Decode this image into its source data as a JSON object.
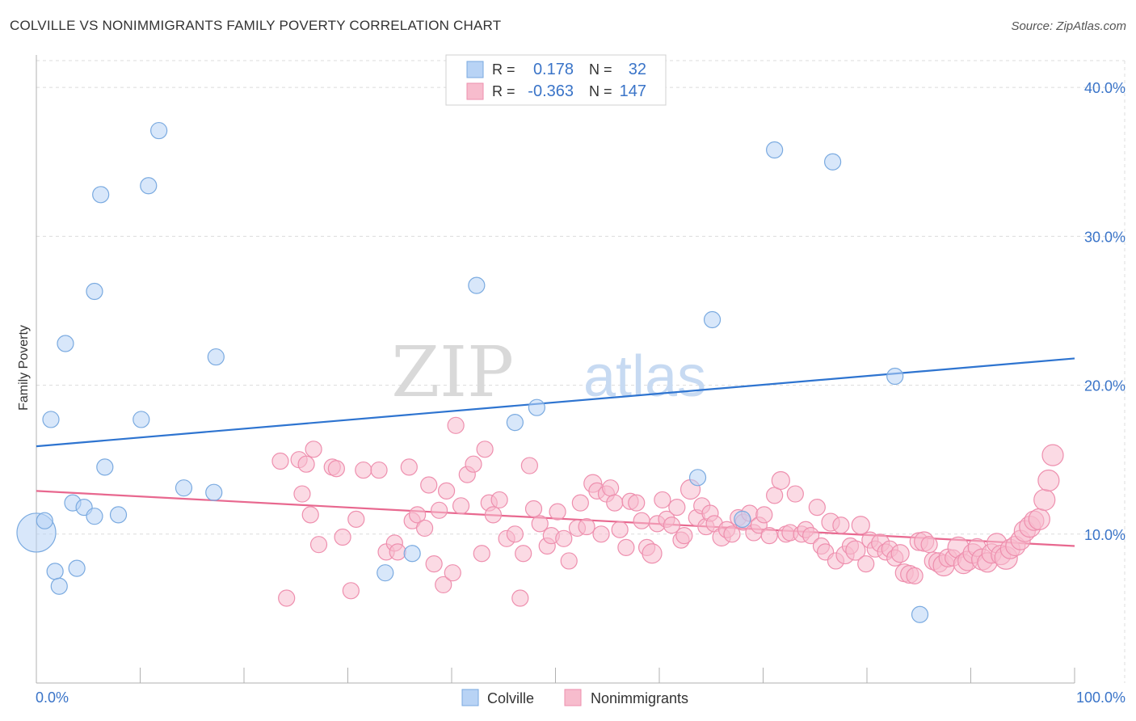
{
  "title": "COLVILLE VS NONIMMIGRANTS FAMILY POVERTY CORRELATION CHART",
  "source": "Source: ZipAtlas.com",
  "watermark": {
    "zip": "ZIP",
    "atlas": "atlas"
  },
  "colors": {
    "colville_fill": "#b8d3f5",
    "colville_stroke": "#7aaae0",
    "colville_line": "#2e74d0",
    "nonimm_fill": "#f7bccd",
    "nonimm_stroke": "#ee8fae",
    "nonimm_line": "#e8688f",
    "tick_label": "#3a74c8",
    "grid": "#dcdcdc"
  },
  "legend_box": {
    "rows": [
      {
        "r_label": "R =",
        "r_value": "0.178",
        "n_label": "N =",
        "n_value": "32"
      },
      {
        "r_label": "R =",
        "r_value": "-0.363",
        "n_label": "N =",
        "n_value": "147"
      }
    ]
  },
  "bottom_legend": {
    "series1": "Colville",
    "series2": "Nonimmigrants"
  },
  "chart_data": {
    "type": "scatter",
    "ylabel": "Family Poverty",
    "xlabel": "",
    "x_tick_labels": [
      "0.0%",
      "100.0%"
    ],
    "y_tick_labels": [
      "10.0%",
      "20.0%",
      "30.0%",
      "40.0%"
    ],
    "y_ticks": [
      10,
      20,
      30,
      40
    ],
    "xlim": [
      0,
      100
    ],
    "ylim": [
      0,
      41.8
    ],
    "grid": true,
    "legend_position": "top-center",
    "series": [
      {
        "name": "Colville",
        "r": 0.178,
        "n": 32,
        "trend": {
          "x": [
            0,
            100
          ],
          "y": [
            15.9,
            21.8
          ]
        },
        "points": [
          [
            0,
            10.1,
            24
          ],
          [
            0.8,
            10.9,
            10
          ],
          [
            1.4,
            17.7,
            10
          ],
          [
            1.8,
            7.5,
            10
          ],
          [
            2.2,
            6.5,
            10
          ],
          [
            2.8,
            22.8,
            10
          ],
          [
            3.5,
            12.1,
            10
          ],
          [
            3.9,
            7.7,
            10
          ],
          [
            4.6,
            11.8,
            10
          ],
          [
            5.6,
            11.2,
            10
          ],
          [
            5.6,
            26.3,
            10
          ],
          [
            6.2,
            32.8,
            10
          ],
          [
            6.6,
            14.5,
            10
          ],
          [
            7.9,
            11.3,
            10
          ],
          [
            10.1,
            17.7,
            10
          ],
          [
            10.8,
            33.4,
            10
          ],
          [
            11.8,
            37.1,
            10
          ],
          [
            14.2,
            13.1,
            10
          ],
          [
            17.1,
            12.8,
            10
          ],
          [
            17.3,
            21.9,
            10
          ],
          [
            33.6,
            7.4,
            10
          ],
          [
            36.2,
            8.7,
            10
          ],
          [
            42.4,
            26.7,
            10
          ],
          [
            46.1,
            17.5,
            10
          ],
          [
            48.2,
            18.5,
            10
          ],
          [
            63.7,
            13.8,
            10
          ],
          [
            65.1,
            24.4,
            10
          ],
          [
            68.0,
            11.0,
            10
          ],
          [
            71.1,
            35.8,
            10
          ],
          [
            76.7,
            35.0,
            10
          ],
          [
            82.7,
            20.6,
            10
          ],
          [
            85.1,
            4.6,
            10
          ]
        ]
      },
      {
        "name": "Nonimmigrants",
        "r": -0.363,
        "n": 147,
        "trend": {
          "x": [
            0,
            100
          ],
          "y": [
            12.9,
            9.2
          ]
        },
        "points": [
          [
            23.5,
            14.9,
            10
          ],
          [
            24.1,
            5.7,
            10
          ],
          [
            25.3,
            15.0,
            10
          ],
          [
            25.6,
            12.7,
            10
          ],
          [
            26.0,
            14.7,
            10
          ],
          [
            26.4,
            11.3,
            10
          ],
          [
            26.7,
            15.7,
            10
          ],
          [
            27.2,
            9.3,
            10
          ],
          [
            28.5,
            14.5,
            10
          ],
          [
            28.9,
            14.4,
            10
          ],
          [
            29.5,
            9.8,
            10
          ],
          [
            30.3,
            6.2,
            10
          ],
          [
            30.8,
            11.0,
            10
          ],
          [
            31.5,
            14.3,
            10
          ],
          [
            33.0,
            14.3,
            10
          ],
          [
            33.7,
            8.8,
            10
          ],
          [
            34.5,
            9.4,
            10
          ],
          [
            34.8,
            8.8,
            10
          ],
          [
            35.9,
            14.5,
            10
          ],
          [
            36.2,
            10.9,
            10
          ],
          [
            36.7,
            11.3,
            10
          ],
          [
            37.4,
            10.4,
            10
          ],
          [
            37.8,
            13.3,
            10
          ],
          [
            38.3,
            8.0,
            10
          ],
          [
            38.8,
            11.6,
            10
          ],
          [
            39.2,
            6.6,
            10
          ],
          [
            39.5,
            12.9,
            10
          ],
          [
            40.1,
            7.4,
            10
          ],
          [
            40.4,
            17.3,
            10
          ],
          [
            40.9,
            11.9,
            10
          ],
          [
            41.5,
            14.0,
            10
          ],
          [
            42.1,
            14.7,
            10
          ],
          [
            42.9,
            8.7,
            10
          ],
          [
            43.2,
            15.7,
            10
          ],
          [
            43.6,
            12.1,
            10
          ],
          [
            44.0,
            11.3,
            10
          ],
          [
            44.6,
            12.3,
            10
          ],
          [
            45.3,
            9.7,
            10
          ],
          [
            46.1,
            10.0,
            10
          ],
          [
            46.6,
            5.7,
            10
          ],
          [
            46.9,
            8.7,
            10
          ],
          [
            47.5,
            14.6,
            10
          ],
          [
            47.9,
            11.7,
            10
          ],
          [
            48.5,
            10.7,
            10
          ],
          [
            49.2,
            9.2,
            10
          ],
          [
            49.6,
            9.9,
            10
          ],
          [
            50.2,
            11.5,
            10
          ],
          [
            50.8,
            9.7,
            10
          ],
          [
            51.3,
            8.2,
            10
          ],
          [
            52.1,
            10.4,
            10
          ],
          [
            52.4,
            12.1,
            10
          ],
          [
            53.0,
            10.5,
            10
          ],
          [
            53.6,
            13.4,
            11
          ],
          [
            54.0,
            12.9,
            10
          ],
          [
            54.4,
            10.0,
            10
          ],
          [
            54.9,
            12.7,
            10
          ],
          [
            55.3,
            13.1,
            10
          ],
          [
            55.7,
            12.1,
            10
          ],
          [
            56.2,
            10.3,
            10
          ],
          [
            56.8,
            9.1,
            10
          ],
          [
            57.2,
            12.2,
            10
          ],
          [
            57.8,
            12.1,
            10
          ],
          [
            58.3,
            10.9,
            10
          ],
          [
            58.8,
            9.1,
            10
          ],
          [
            59.3,
            8.7,
            12
          ],
          [
            59.8,
            10.7,
            10
          ],
          [
            60.3,
            12.3,
            10
          ],
          [
            60.7,
            11.0,
            10
          ],
          [
            61.2,
            10.6,
            10
          ],
          [
            61.7,
            11.8,
            10
          ],
          [
            62.1,
            9.6,
            10
          ],
          [
            62.4,
            9.9,
            10
          ],
          [
            63.0,
            13.0,
            12
          ],
          [
            63.6,
            11.1,
            10
          ],
          [
            64.1,
            11.9,
            10
          ],
          [
            64.5,
            10.5,
            10
          ],
          [
            64.9,
            11.4,
            10
          ],
          [
            65.3,
            10.7,
            10
          ],
          [
            66.0,
            9.8,
            11
          ],
          [
            66.5,
            10.3,
            10
          ],
          [
            67.0,
            10.0,
            10
          ],
          [
            67.6,
            11.1,
            10
          ],
          [
            68.1,
            10.8,
            10
          ],
          [
            68.7,
            11.4,
            10
          ],
          [
            69.1,
            10.1,
            10
          ],
          [
            69.6,
            10.6,
            10
          ],
          [
            70.1,
            11.3,
            10
          ],
          [
            70.6,
            9.9,
            10
          ],
          [
            71.1,
            12.6,
            10
          ],
          [
            71.7,
            13.6,
            11
          ],
          [
            72.2,
            10.0,
            10
          ],
          [
            72.6,
            10.1,
            10
          ],
          [
            73.1,
            12.7,
            10
          ],
          [
            73.7,
            10.0,
            10
          ],
          [
            74.1,
            10.3,
            10
          ],
          [
            74.6,
            9.9,
            10
          ],
          [
            75.2,
            11.8,
            10
          ],
          [
            75.6,
            9.2,
            10
          ],
          [
            76.0,
            8.8,
            10
          ],
          [
            76.5,
            10.8,
            11
          ],
          [
            77.0,
            8.2,
            10
          ],
          [
            77.5,
            10.6,
            10
          ],
          [
            77.9,
            8.6,
            11
          ],
          [
            78.4,
            9.2,
            10
          ],
          [
            78.9,
            8.9,
            12
          ],
          [
            79.4,
            10.6,
            11
          ],
          [
            79.9,
            8.0,
            10
          ],
          [
            80.3,
            9.6,
            10
          ],
          [
            80.8,
            9.0,
            10
          ],
          [
            81.3,
            9.4,
            11
          ],
          [
            81.8,
            8.8,
            10
          ],
          [
            82.2,
            9.0,
            10
          ],
          [
            82.7,
            8.4,
            10
          ],
          [
            83.2,
            8.7,
            11
          ],
          [
            83.6,
            7.4,
            11
          ],
          [
            84.1,
            7.3,
            11
          ],
          [
            84.6,
            7.2,
            10
          ],
          [
            85.0,
            9.5,
            11
          ],
          [
            85.5,
            9.5,
            12
          ],
          [
            86.0,
            9.3,
            10
          ],
          [
            86.4,
            8.2,
            11
          ],
          [
            86.9,
            8.1,
            12
          ],
          [
            87.4,
            7.9,
            13
          ],
          [
            87.8,
            8.4,
            11
          ],
          [
            88.3,
            8.4,
            10
          ],
          [
            88.8,
            9.1,
            13
          ],
          [
            89.3,
            8.0,
            12
          ],
          [
            89.7,
            8.2,
            12
          ],
          [
            90.2,
            8.7,
            12
          ],
          [
            90.6,
            9.1,
            11
          ],
          [
            91.1,
            8.3,
            13
          ],
          [
            91.6,
            8.1,
            12
          ],
          [
            92.0,
            8.7,
            12
          ],
          [
            92.5,
            9.4,
            12
          ],
          [
            92.9,
            8.6,
            12
          ],
          [
            93.4,
            8.4,
            14
          ],
          [
            93.8,
            9.0,
            12
          ],
          [
            94.3,
            9.2,
            12
          ],
          [
            94.8,
            9.6,
            12
          ],
          [
            95.2,
            10.2,
            13
          ],
          [
            95.7,
            10.5,
            13
          ],
          [
            96.1,
            10.9,
            12
          ],
          [
            96.6,
            11.0,
            13
          ],
          [
            97.1,
            12.3,
            13
          ],
          [
            97.5,
            13.6,
            13
          ],
          [
            97.9,
            15.3,
            13
          ]
        ]
      }
    ]
  }
}
